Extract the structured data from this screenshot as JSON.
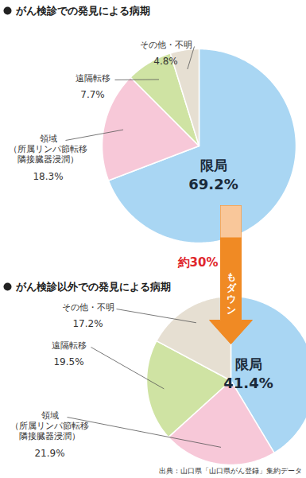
{
  "chart_data": [
    {
      "type": "pie",
      "title": "がん検診での発見による病期",
      "categories": [
        "限局",
        "領域\n（所属リンパ節転移\n隣接臓器浸潤）",
        "遠隔転移",
        "その他・不明"
      ],
      "values": [
        69.2,
        18.3,
        7.7,
        4.8
      ],
      "value_labels": [
        "69.2%",
        "18.3%",
        "7.7%",
        "4.8%"
      ],
      "colors": [
        "#a9d6f3",
        "#f7c8d8",
        "#cfe3a3",
        "#e6dfd2"
      ],
      "data_labels": true
    },
    {
      "type": "pie",
      "title": "がん検診以外での発見による病期",
      "categories": [
        "限局",
        "領域\n（所属リンパ節転移\n隣接臓器浸潤）",
        "遠隔転移",
        "その他・不明"
      ],
      "values": [
        41.4,
        21.9,
        19.5,
        17.2
      ],
      "value_labels": [
        "41.4%",
        "21.9%",
        "19.5%",
        "17.2%"
      ],
      "colors": [
        "#a9d6f3",
        "#f7c8d8",
        "#cfe3a3",
        "#e6dfd2"
      ],
      "data_labels": true,
      "annotations": [
        "約30%",
        "もダウン",
        "出典：山口県「山口県がん登録」集約データ"
      ]
    }
  ]
}
